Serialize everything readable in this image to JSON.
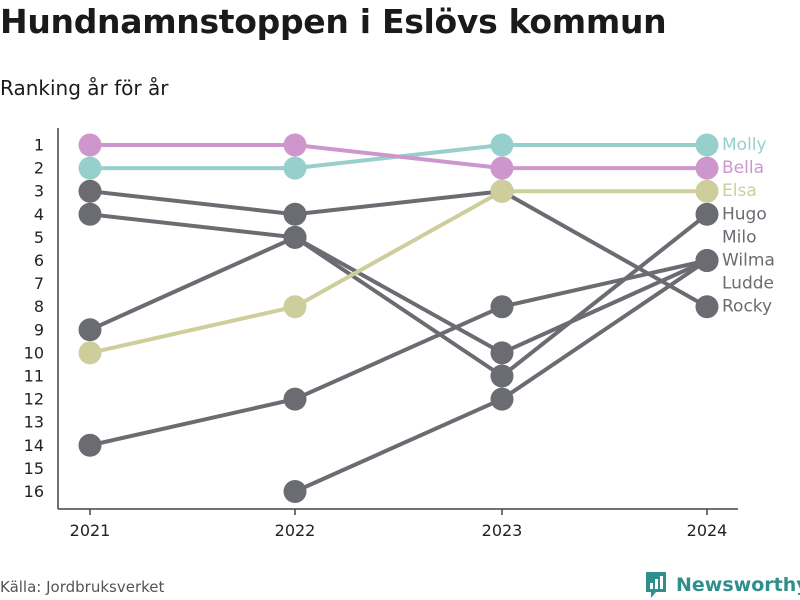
{
  "title": "Hundnamnstoppen i Eslövs kommun",
  "subtitle": "Ranking år för år",
  "source": "Källa: Jordbruksverket",
  "brand": "Newsworthy",
  "chart_data": {
    "type": "line",
    "x": [
      "2021",
      "2022",
      "2023",
      "2024"
    ],
    "y_ticks": [
      1,
      2,
      3,
      4,
      5,
      6,
      7,
      8,
      9,
      10,
      11,
      12,
      13,
      14,
      15,
      16
    ],
    "ylim": [
      1,
      16
    ],
    "y_reversed": true,
    "grid": false,
    "series": [
      {
        "name": "Molly",
        "values": [
          2,
          2,
          1,
          1
        ],
        "color": "#97cfcd"
      },
      {
        "name": "Bella",
        "values": [
          1,
          1,
          2,
          2
        ],
        "color": "#cd97cd"
      },
      {
        "name": "Elsa",
        "values": [
          10,
          8,
          3,
          3
        ],
        "color": "#cece9c"
      },
      {
        "name": "Hugo",
        "values": [
          4,
          5,
          11,
          4
        ],
        "color": "#6b6b72"
      },
      {
        "name": "Milo",
        "values": [
          null,
          16,
          12,
          6
        ],
        "color": "#6b6b72"
      },
      {
        "name": "Wilma",
        "values": [
          14,
          12,
          8,
          6
        ],
        "color": "#6b6b72"
      },
      {
        "name": "Ludde",
        "values": [
          9,
          5,
          10,
          6
        ],
        "color": "#6b6b72"
      },
      {
        "name": "Rocky",
        "values": [
          3,
          4,
          3,
          8
        ],
        "color": "#6b6b72"
      }
    ],
    "end_labels": [
      {
        "name": "Molly",
        "rank": 1,
        "color": "#97cfcd"
      },
      {
        "name": "Bella",
        "rank": 2,
        "color": "#cd97cd"
      },
      {
        "name": "Elsa",
        "rank": 3,
        "color": "#cece9c"
      },
      {
        "name": "Hugo",
        "rank": 4,
        "color": "#6b6b72"
      },
      {
        "name": "Milo",
        "rank": 5,
        "color": "#6b6b72"
      },
      {
        "name": "Wilma",
        "rank": 6,
        "color": "#6b6b72"
      },
      {
        "name": "Ludde",
        "rank": 7,
        "color": "#6b6b72"
      },
      {
        "name": "Rocky",
        "rank": 8,
        "color": "#6b6b72"
      }
    ]
  }
}
